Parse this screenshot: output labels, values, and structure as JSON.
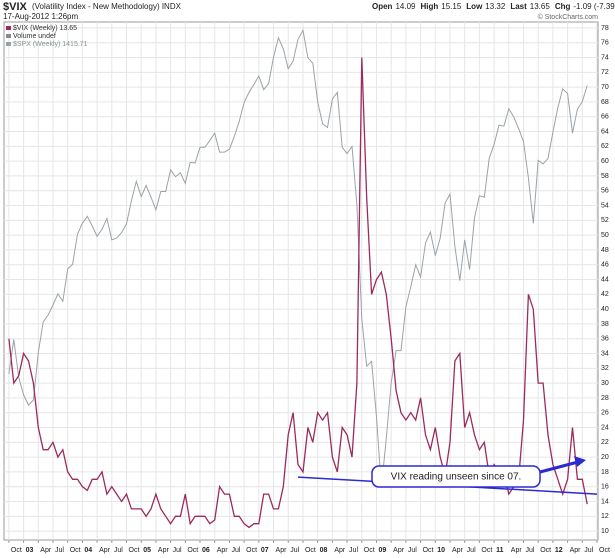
{
  "chart_data": {
    "type": "line",
    "title": "$VIX",
    "subtitle": "(Volatility Index - New Methodology) INDX",
    "date": "17-Aug-2012 1:26pm",
    "quote": [
      {
        "label": "Open",
        "value": 14.09
      },
      {
        "label": "High",
        "value": 15.15
      },
      {
        "label": "Low",
        "value": 13.32
      },
      {
        "label": "Last",
        "value": 13.65
      },
      {
        "label": "Chg",
        "value": "-1.09 (-7.39%)"
      }
    ],
    "credit": "© StockCharts.com",
    "legend_extra": "Volume undef",
    "annotation": "VIX reading unseen since 07.",
    "trendline": {
      "x": [
        "2007-09",
        "2012-10"
      ],
      "y": [
        17.3,
        15.0
      ],
      "color": "#2b2bd0"
    },
    "xlim": [
      "2002-09",
      "2012-10"
    ],
    "ylim": [
      8.8,
      78.8
    ],
    "y2lim": [
      675,
      1570
    ],
    "y2log": true,
    "grid": true,
    "yticks": [
      10,
      12,
      14,
      16,
      18,
      20,
      22,
      24,
      26,
      28,
      30,
      32,
      34,
      36,
      38,
      40,
      42,
      44,
      46,
      48,
      50,
      52,
      54,
      56,
      58,
      60,
      62,
      64,
      66,
      68,
      70,
      72,
      74,
      76,
      78
    ],
    "xticks": [
      {
        "value": "2002-10",
        "label": "Oct"
      },
      {
        "value": "2003-01",
        "label": "03"
      },
      {
        "value": "2003-04",
        "label": "Apr"
      },
      {
        "value": "2003-07",
        "label": "Jul"
      },
      {
        "value": "2003-10",
        "label": "Oct"
      },
      {
        "value": "2004-01",
        "label": "04"
      },
      {
        "value": "2004-04",
        "label": "Apr"
      },
      {
        "value": "2004-07",
        "label": "Jul"
      },
      {
        "value": "2004-10",
        "label": "Oct"
      },
      {
        "value": "2005-01",
        "label": "05"
      },
      {
        "value": "2005-04",
        "label": "Apr"
      },
      {
        "value": "2005-07",
        "label": "Jul"
      },
      {
        "value": "2005-10",
        "label": "Oct"
      },
      {
        "value": "2006-01",
        "label": "06"
      },
      {
        "value": "2006-04",
        "label": "Apr"
      },
      {
        "value": "2006-07",
        "label": "Jul"
      },
      {
        "value": "2006-10",
        "label": "Oct"
      },
      {
        "value": "2007-01",
        "label": "07"
      },
      {
        "value": "2007-04",
        "label": "Apr"
      },
      {
        "value": "2007-07",
        "label": "Jul"
      },
      {
        "value": "2007-10",
        "label": "Oct"
      },
      {
        "value": "2008-01",
        "label": "08"
      },
      {
        "value": "2008-04",
        "label": "Apr"
      },
      {
        "value": "2008-07",
        "label": "Jul"
      },
      {
        "value": "2008-10",
        "label": "Oct"
      },
      {
        "value": "2009-01",
        "label": "09"
      },
      {
        "value": "2009-04",
        "label": "Apr"
      },
      {
        "value": "2009-07",
        "label": "Jul"
      },
      {
        "value": "2009-10",
        "label": "Oct"
      },
      {
        "value": "2010-01",
        "label": "10"
      },
      {
        "value": "2010-04",
        "label": "Apr"
      },
      {
        "value": "2010-07",
        "label": "Jul"
      },
      {
        "value": "2010-10",
        "label": "Oct"
      },
      {
        "value": "2011-01",
        "label": "11"
      },
      {
        "value": "2011-04",
        "label": "Apr"
      },
      {
        "value": "2011-07",
        "label": "Jul"
      },
      {
        "value": "2011-10",
        "label": "Oct"
      },
      {
        "value": "2012-01",
        "label": "12"
      },
      {
        "value": "2012-04",
        "label": "Apr"
      },
      {
        "value": "2012-07",
        "label": "Jul"
      },
      {
        "value": "2012-10",
        "label": "Oct"
      }
    ],
    "x": [
      "2002-10",
      "2002-11",
      "2002-12",
      "2003-01",
      "2003-02",
      "2003-03",
      "2003-04",
      "2003-05",
      "2003-06",
      "2003-07",
      "2003-08",
      "2003-09",
      "2003-10",
      "2003-11",
      "2003-12",
      "2004-01",
      "2004-02",
      "2004-03",
      "2004-04",
      "2004-05",
      "2004-06",
      "2004-07",
      "2004-08",
      "2004-09",
      "2004-10",
      "2004-11",
      "2004-12",
      "2005-01",
      "2005-02",
      "2005-03",
      "2005-04",
      "2005-05",
      "2005-06",
      "2005-07",
      "2005-08",
      "2005-09",
      "2005-10",
      "2005-11",
      "2005-12",
      "2006-01",
      "2006-02",
      "2006-03",
      "2006-04",
      "2006-05",
      "2006-06",
      "2006-07",
      "2006-08",
      "2006-09",
      "2006-10",
      "2006-11",
      "2006-12",
      "2007-01",
      "2007-02",
      "2007-03",
      "2007-04",
      "2007-05",
      "2007-06",
      "2007-07",
      "2007-08",
      "2007-09",
      "2007-10",
      "2007-11",
      "2007-12",
      "2008-01",
      "2008-02",
      "2008-03",
      "2008-04",
      "2008-05",
      "2008-06",
      "2008-07",
      "2008-08",
      "2008-09",
      "2008-10",
      "2008-11",
      "2008-12",
      "2009-01",
      "2009-02",
      "2009-03",
      "2009-04",
      "2009-05",
      "2009-06",
      "2009-07",
      "2009-08",
      "2009-09",
      "2009-10",
      "2009-11",
      "2009-12",
      "2010-01",
      "2010-02",
      "2010-03",
      "2010-04",
      "2010-05",
      "2010-06",
      "2010-07",
      "2010-08",
      "2010-09",
      "2010-10",
      "2010-11",
      "2010-12",
      "2011-01",
      "2011-02",
      "2011-03",
      "2011-04",
      "2011-05",
      "2011-06",
      "2011-07",
      "2011-08",
      "2011-09",
      "2011-10",
      "2011-11",
      "2011-12",
      "2012-01",
      "2012-02",
      "2012-03",
      "2012-04",
      "2012-05",
      "2012-06",
      "2012-07",
      "2012-08"
    ],
    "series": [
      {
        "name": "$SPX (Weekly) 1415.71",
        "color": "#9aa3a8",
        "axis": "y2",
        "values": [
          885,
          936,
          880,
          855,
          841,
          848,
          916,
          963,
          974,
          990,
          1008,
          996,
          1050,
          1058,
          1111,
          1131,
          1144,
          1126,
          1107,
          1120,
          1140,
          1101,
          1104,
          1114,
          1130,
          1173,
          1211,
          1181,
          1203,
          1180,
          1156,
          1191,
          1191,
          1234,
          1220,
          1228,
          1207,
          1249,
          1248,
          1280,
          1280,
          1294,
          1310,
          1270,
          1270,
          1276,
          1303,
          1335,
          1377,
          1400,
          1418,
          1438,
          1406,
          1420,
          1482,
          1530,
          1503,
          1455,
          1473,
          1526,
          1549,
          1481,
          1468,
          1378,
          1330,
          1322,
          1385,
          1400,
          1280,
          1267,
          1282,
          1166,
          968,
          896,
          903,
          825,
          735,
          797,
          872,
          919,
          919,
          987,
          1020,
          1057,
          1036,
          1095,
          1115,
          1073,
          1104,
          1169,
          1186,
          1089,
          1030,
          1101,
          1049,
          1141,
          1183,
          1180,
          1257,
          1286,
          1327,
          1325,
          1363,
          1345,
          1320,
          1292,
          1218,
          1131,
          1253,
          1246,
          1257,
          1312,
          1365,
          1408,
          1397,
          1310,
          1362,
          1379,
          1415.71
        ]
      },
      {
        "name": "$VIX (Weekly) 13.65",
        "color": "#9b2a5e",
        "values": [
          36,
          30,
          31,
          34,
          33,
          30,
          24,
          21,
          21,
          22,
          20,
          21,
          18,
          17,
          17,
          16,
          15.5,
          17,
          17,
          18,
          15,
          16,
          15,
          14,
          15,
          13,
          13,
          13,
          12,
          13,
          15,
          13,
          12,
          11,
          12,
          12,
          15,
          11,
          12,
          12,
          12,
          11,
          11.5,
          16,
          15,
          15,
          12,
          12,
          11,
          10.5,
          11,
          11,
          15,
          15,
          13,
          13,
          16,
          23,
          26,
          19,
          18,
          24,
          22,
          26,
          25,
          26,
          20,
          18,
          24,
          23,
          20,
          30,
          74,
          55,
          42,
          44,
          45,
          42,
          36,
          29,
          26,
          25,
          26,
          25,
          28,
          23,
          21,
          24,
          20,
          17.5,
          22,
          33,
          34,
          24,
          26,
          23,
          21,
          22,
          17.5,
          19,
          18,
          18,
          15,
          16,
          17,
          25,
          42,
          40,
          30,
          30,
          23,
          19,
          17,
          15,
          17,
          24,
          17,
          17,
          13.65
        ]
      }
    ]
  }
}
